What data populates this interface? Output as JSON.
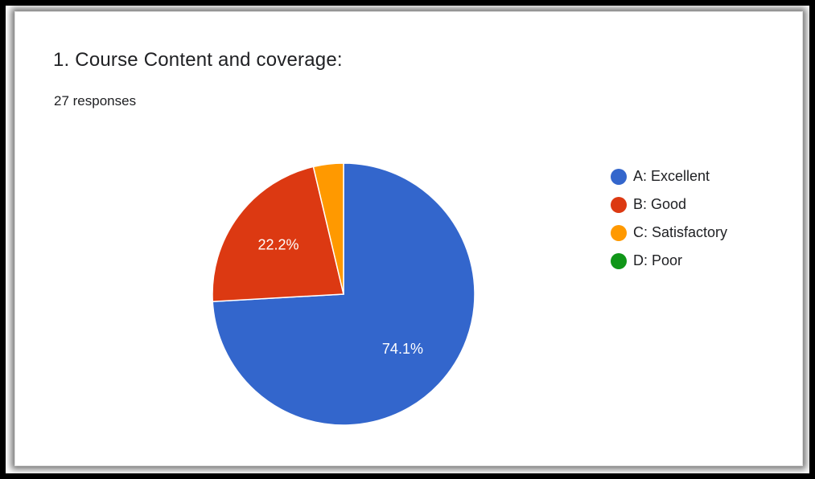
{
  "card": {
    "title": "1. Course Content and coverage:",
    "subtitle": "27 responses"
  },
  "chart_data": {
    "type": "pie",
    "title": "1. Course Content and coverage:",
    "subtitle": "27 responses",
    "legend_position": "right",
    "slices": [
      {
        "label": "A: Excellent",
        "value": 74.1,
        "color": "#3366cc",
        "data_label": "74.1%"
      },
      {
        "label": "B: Good",
        "value": 22.2,
        "color": "#dc3912",
        "data_label": "22.2%"
      },
      {
        "label": "C: Satisfactory",
        "value": 3.7,
        "color": "#ff9900",
        "data_label": ""
      },
      {
        "label": "D: Poor",
        "value": 0,
        "color": "#109618",
        "data_label": ""
      }
    ]
  }
}
